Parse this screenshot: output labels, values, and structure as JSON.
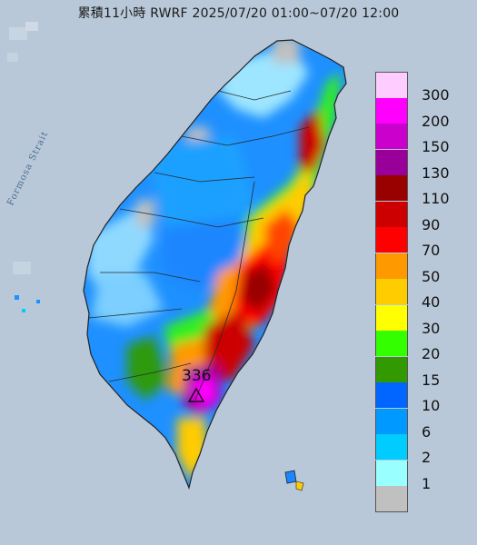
{
  "title": "累積11小時 RWRF 2025/07/20 01:00~07/20 12:00",
  "strait_label": "Formosa Strait",
  "max_marker": {
    "value": "336",
    "icon": "triangle-marker-icon"
  },
  "legend": [
    {
      "label": "300",
      "color": "#ffccff"
    },
    {
      "label": "200",
      "color": "#ff00ff"
    },
    {
      "label": "150",
      "color": "#cc00cc"
    },
    {
      "label": "130",
      "color": "#990099"
    },
    {
      "label": "110",
      "color": "#990000"
    },
    {
      "label": "90",
      "color": "#cc0000"
    },
    {
      "label": "70",
      "color": "#ff0000"
    },
    {
      "label": "50",
      "color": "#ff9900"
    },
    {
      "label": "40",
      "color": "#ffcc00"
    },
    {
      "label": "30",
      "color": "#ffff00"
    },
    {
      "label": "20",
      "color": "#33ff00"
    },
    {
      "label": "15",
      "color": "#339900"
    },
    {
      "label": "10",
      "color": "#0066ff"
    },
    {
      "label": "6",
      "color": "#0099ff"
    },
    {
      "label": "2",
      "color": "#00ccff"
    },
    {
      "label": "1",
      "color": "#99ffff"
    },
    {
      "label": "",
      "color": "#c0c0c0"
    }
  ],
  "colors": {
    "sea": "#b9c9d8",
    "outline": "#222222",
    "background": "#b9c9d8"
  }
}
